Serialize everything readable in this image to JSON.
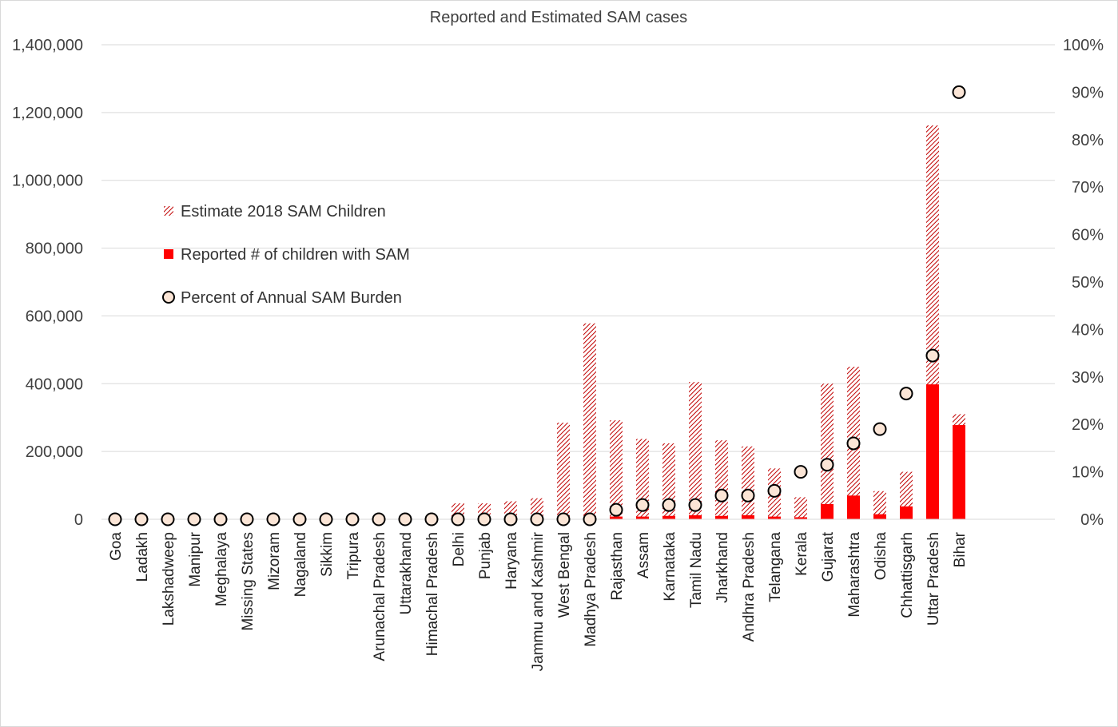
{
  "chart_data": {
    "type": "bar",
    "title": "Reported and Estimated SAM cases",
    "categories": [
      "Goa",
      "Ladakh",
      "Lakshadweep",
      "Manipur",
      "Meghalaya",
      "Missing States",
      "Mizoram",
      "Nagaland",
      "Sikkim",
      "Tripura",
      "Arunachal Pradesh",
      "Uttarakhand",
      "Himachal Pradesh",
      "Delhi",
      "Punjab",
      "Haryana",
      "Jammu and Kashmir",
      "West Bengal",
      "Madhya Pradesh",
      "Rajasthan",
      "Assam",
      "Karnataka",
      "Tamil Nadu",
      "Jharkhand",
      "Andhra Pradesh",
      "Telangana",
      "Kerala",
      "Gujarat",
      "Maharashtra",
      "Odisha",
      "Chhattisgarh",
      "Uttar Pradesh",
      "Bihar"
    ],
    "series": [
      {
        "name": "Estimate 2018 SAM Children",
        "kind": "bar",
        "pattern": "hatched",
        "color": "#c00000",
        "axis": "left",
        "values": [
          0,
          0,
          0,
          0,
          0,
          0,
          0,
          0,
          0,
          0,
          0,
          0,
          0,
          47000,
          47000,
          53000,
          62000,
          285000,
          578000,
          292000,
          237000,
          224000,
          405000,
          233000,
          215000,
          150000,
          65000,
          400000,
          450000,
          83000,
          140000,
          1162000,
          310000
        ]
      },
      {
        "name": "Reported # of children with SAM",
        "kind": "bar",
        "pattern": "solid",
        "color": "#ff0000",
        "axis": "left",
        "values": [
          0,
          0,
          0,
          0,
          0,
          0,
          0,
          0,
          0,
          0,
          0,
          0,
          0,
          0,
          0,
          0,
          0,
          0,
          0,
          8000,
          8000,
          10000,
          12000,
          10000,
          12000,
          8000,
          6000,
          45000,
          70000,
          15000,
          38000,
          398000,
          278000
        ]
      },
      {
        "name": "Percent of Annual SAM Burden",
        "kind": "marker",
        "color": "#fbe5d6",
        "axis": "right",
        "values": [
          0,
          0,
          0,
          0,
          0,
          0,
          0,
          0,
          0,
          0,
          0,
          0,
          0,
          0,
          0,
          0,
          0,
          0,
          0,
          2,
          3,
          3,
          3,
          5,
          5,
          6,
          10,
          11.5,
          16,
          19,
          26.5,
          34.5,
          90
        ]
      }
    ],
    "y_left": {
      "min": 0,
      "max": 1400000,
      "ticks": [
        "0",
        "200,000",
        "400,000",
        "600,000",
        "800,000",
        "1,000,000",
        "1,200,000",
        "1,400,000"
      ]
    },
    "y_right": {
      "min": 0,
      "max": 100,
      "unit": "%",
      "ticks": [
        "0%",
        "10%",
        "20%",
        "30%",
        "40%",
        "50%",
        "60%",
        "70%",
        "80%",
        "90%",
        "100%"
      ]
    },
    "grid": true,
    "legend_position": "upper-left inside plot"
  }
}
